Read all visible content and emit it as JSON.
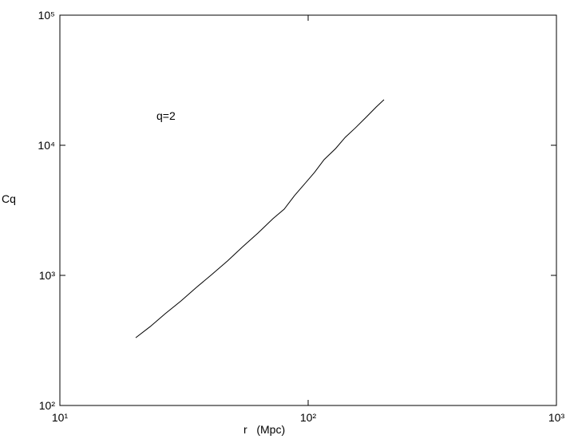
{
  "chart_data": {
    "type": "line",
    "xlabel": "r   (Mpc)",
    "ylabel": "Cq",
    "annotation": "q=2",
    "x": [
      20.2,
      23.1,
      26.6,
      30.8,
      35.5,
      40.8,
      47.3,
      54.5,
      62.7,
      72.2,
      80.1,
      88.1,
      96.4,
      106,
      116,
      129,
      141,
      155,
      171,
      188,
      202
    ],
    "series": [
      {
        "color": "#000000",
        "values": [
          332,
          404,
          508,
          637,
          809,
          1010,
          1290,
          1660,
          2110,
          2730,
          3230,
          4100,
          5000,
          6180,
          7760,
          9440,
          11500,
          13600,
          16400,
          19700,
          22400
        ]
      }
    ],
    "xlog": true,
    "ylog": true,
    "xlim": [
      10,
      1000
    ],
    "ylim": [
      100,
      100000
    ],
    "xticks": [
      {
        "value": 10,
        "label": "10¹"
      },
      {
        "value": 100,
        "label": "10²"
      },
      {
        "value": 1000,
        "label": "10³"
      }
    ],
    "yticks": [
      {
        "value": 100,
        "label": "10²"
      },
      {
        "value": 1000,
        "label": "10³"
      },
      {
        "value": 10000,
        "label": "10⁴"
      },
      {
        "value": 100000,
        "label": "10⁵"
      }
    ]
  }
}
